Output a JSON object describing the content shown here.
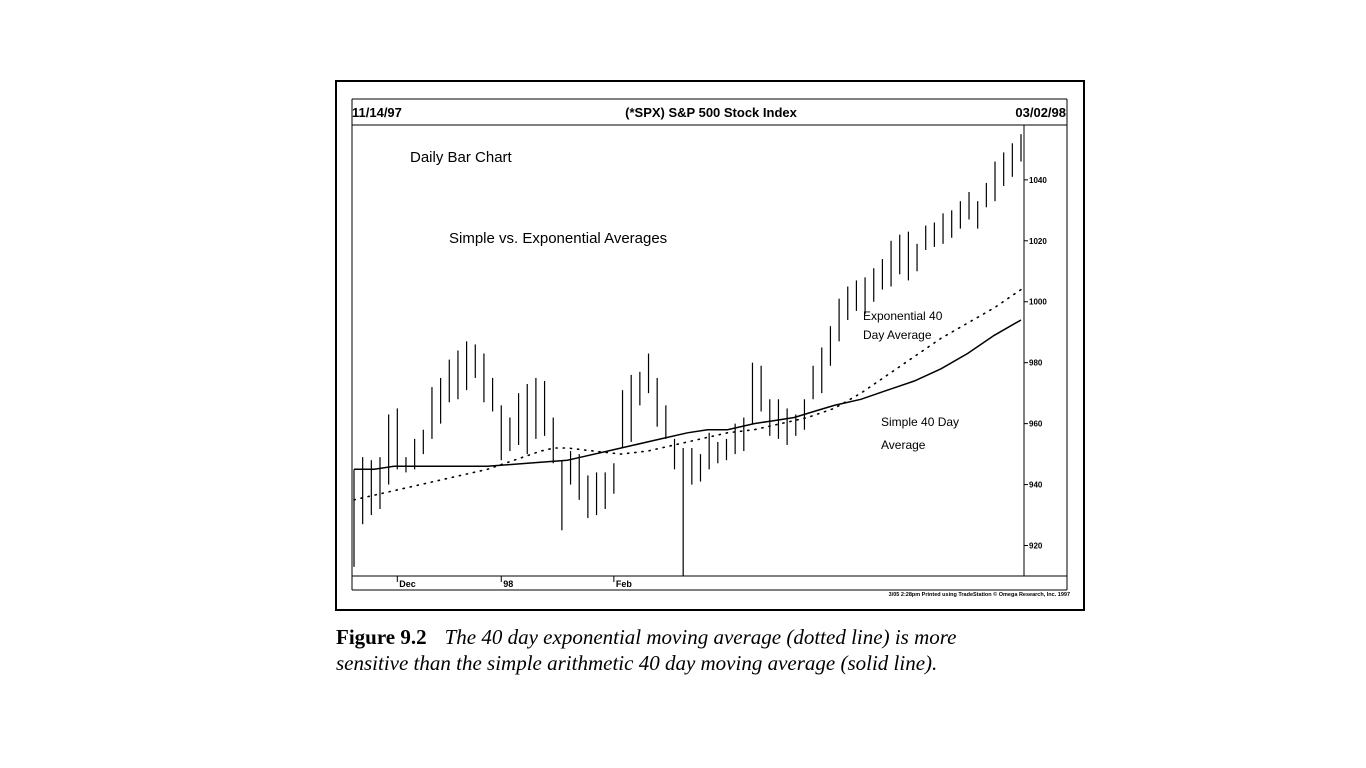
{
  "chart_data": {
    "type": "ohlc-bar",
    "header": {
      "left_date": "11/14/97",
      "title": "(*SPX) S&P 500 Stock Index",
      "right_date": "03/02/98"
    },
    "annotations": {
      "chart_kind": "Daily Bar Chart",
      "subtitle": "Simple vs. Exponential Averages",
      "ema_label_line1": "Exponential 40",
      "ema_label_line2": "Day Average",
      "sma_label_line1": "Simple 40 Day",
      "sma_label_line2": "Average"
    },
    "footer_note": "3/05 2:28pm Printed using TradeStation © Omega Research, Inc. 1997",
    "y_axis": {
      "ticks": [
        920,
        940,
        960,
        980,
        1000,
        1020,
        1040
      ],
      "range": [
        910,
        1058
      ],
      "position": "right"
    },
    "x_axis": {
      "labels": [
        "Dec",
        "98",
        "Feb"
      ],
      "label_bar_index": [
        5,
        17,
        30
      ]
    },
    "bars": [
      {
        "high": 945,
        "low": 913
      },
      {
        "high": 949,
        "low": 927
      },
      {
        "high": 948,
        "low": 930
      },
      {
        "high": 949,
        "low": 932
      },
      {
        "high": 963,
        "low": 940
      },
      {
        "high": 965,
        "low": 945
      },
      {
        "high": 949,
        "low": 944
      },
      {
        "high": 955,
        "low": 945
      },
      {
        "high": 958,
        "low": 950
      },
      {
        "high": 972,
        "low": 955
      },
      {
        "high": 975,
        "low": 960
      },
      {
        "high": 981,
        "low": 967
      },
      {
        "high": 984,
        "low": 968
      },
      {
        "high": 987,
        "low": 971
      },
      {
        "high": 986,
        "low": 975
      },
      {
        "high": 983,
        "low": 967
      },
      {
        "high": 975,
        "low": 964
      },
      {
        "high": 966,
        "low": 948
      },
      {
        "high": 962,
        "low": 951
      },
      {
        "high": 970,
        "low": 953
      },
      {
        "high": 973,
        "low": 950
      },
      {
        "high": 975,
        "low": 955
      },
      {
        "high": 974,
        "low": 956
      },
      {
        "high": 962,
        "low": 947
      },
      {
        "high": 948,
        "low": 925
      },
      {
        "high": 951,
        "low": 940
      },
      {
        "high": 950,
        "low": 935
      },
      {
        "high": 943,
        "low": 929
      },
      {
        "high": 944,
        "low": 930
      },
      {
        "high": 944,
        "low": 932
      },
      {
        "high": 947,
        "low": 937
      },
      {
        "high": 971,
        "low": 952
      },
      {
        "high": 976,
        "low": 954
      },
      {
        "high": 977,
        "low": 966
      },
      {
        "high": 983,
        "low": 970
      },
      {
        "high": 975,
        "low": 959
      },
      {
        "high": 966,
        "low": 955
      },
      {
        "high": 955,
        "low": 945
      },
      {
        "high": 952,
        "low": 910
      },
      {
        "high": 952,
        "low": 940
      },
      {
        "high": 950,
        "low": 941
      },
      {
        "high": 957,
        "low": 945
      },
      {
        "high": 954,
        "low": 947
      },
      {
        "high": 955,
        "low": 948
      },
      {
        "high": 960,
        "low": 950
      },
      {
        "high": 962,
        "low": 951
      },
      {
        "high": 980,
        "low": 960
      },
      {
        "high": 979,
        "low": 964
      },
      {
        "high": 968,
        "low": 956
      },
      {
        "high": 968,
        "low": 955
      },
      {
        "high": 965,
        "low": 953
      },
      {
        "high": 963,
        "low": 956
      },
      {
        "high": 968,
        "low": 958
      },
      {
        "high": 979,
        "low": 968
      },
      {
        "high": 985,
        "low": 970
      },
      {
        "high": 992,
        "low": 979
      },
      {
        "high": 1001,
        "low": 987
      },
      {
        "high": 1005,
        "low": 994
      },
      {
        "high": 1007,
        "low": 997
      },
      {
        "high": 1008,
        "low": 996
      },
      {
        "high": 1011,
        "low": 1000
      },
      {
        "high": 1014,
        "low": 1004
      },
      {
        "high": 1020,
        "low": 1005
      },
      {
        "high": 1022,
        "low": 1009
      },
      {
        "high": 1023,
        "low": 1007
      },
      {
        "high": 1019,
        "low": 1010
      },
      {
        "high": 1025,
        "low": 1017
      },
      {
        "high": 1026,
        "low": 1018
      },
      {
        "high": 1029,
        "low": 1019
      },
      {
        "high": 1030,
        "low": 1021
      },
      {
        "high": 1033,
        "low": 1024
      },
      {
        "high": 1036,
        "low": 1027
      },
      {
        "high": 1033,
        "low": 1024
      },
      {
        "high": 1039,
        "low": 1031
      },
      {
        "high": 1046,
        "low": 1033
      },
      {
        "high": 1049,
        "low": 1038
      },
      {
        "high": 1052,
        "low": 1041
      },
      {
        "high": 1055,
        "low": 1046
      }
    ],
    "series": [
      {
        "name": "Simple 40 Day Average",
        "style": "solid",
        "points": [
          [
            0,
            945
          ],
          [
            3,
            945
          ],
          [
            6,
            946
          ],
          [
            10,
            946
          ],
          [
            15,
            946
          ],
          [
            20,
            946
          ],
          [
            26,
            947
          ],
          [
            32,
            948
          ],
          [
            34,
            949
          ],
          [
            38,
            951
          ],
          [
            42,
            953
          ],
          [
            46,
            955
          ],
          [
            50,
            957
          ],
          [
            53,
            958
          ],
          [
            56,
            958
          ],
          [
            60,
            960
          ],
          [
            63,
            961
          ],
          [
            66,
            962
          ],
          [
            69,
            964
          ],
          [
            72,
            966
          ],
          [
            76,
            968
          ],
          [
            80,
            971
          ],
          [
            84,
            974
          ],
          [
            88,
            978
          ],
          [
            92,
            983
          ],
          [
            96,
            989
          ],
          [
            100,
            994
          ]
        ]
      },
      {
        "name": "Exponential 40 Day Average",
        "style": "dotted",
        "points": [
          [
            0,
            935
          ],
          [
            4,
            937
          ],
          [
            8,
            939
          ],
          [
            12,
            941
          ],
          [
            16,
            943
          ],
          [
            20,
            945
          ],
          [
            24,
            948
          ],
          [
            28,
            951
          ],
          [
            30,
            952
          ],
          [
            32,
            952
          ],
          [
            36,
            951
          ],
          [
            40,
            950
          ],
          [
            44,
            951
          ],
          [
            48,
            953
          ],
          [
            52,
            955
          ],
          [
            56,
            957
          ],
          [
            60,
            958
          ],
          [
            64,
            960
          ],
          [
            68,
            962
          ],
          [
            72,
            965
          ],
          [
            76,
            970
          ],
          [
            80,
            976
          ],
          [
            84,
            982
          ],
          [
            88,
            988
          ],
          [
            92,
            993
          ],
          [
            96,
            998
          ],
          [
            100,
            1004
          ]
        ]
      }
    ]
  },
  "caption": {
    "figure_label": "Figure 9.2",
    "text_line1": "The 40 day exponential moving average (dotted line) is more",
    "text_line2": "sensitive than the simple arithmetic 40 day moving average (solid line)."
  }
}
